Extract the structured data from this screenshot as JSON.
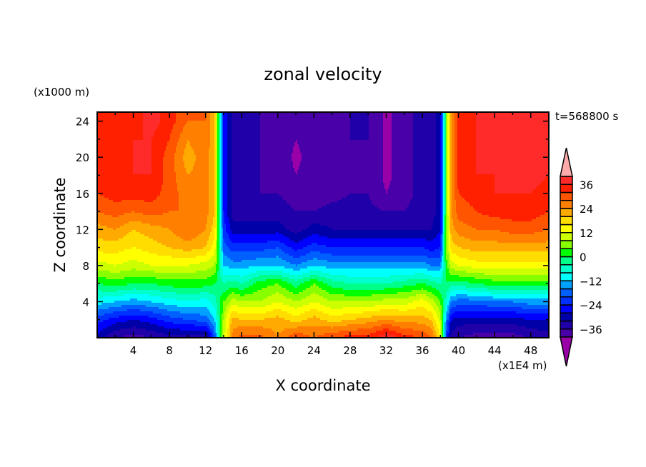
{
  "chart_data": {
    "type": "heatmap",
    "title": "zonal velocity",
    "xlabel": "X coordinate",
    "ylabel": "Z coordinate",
    "x_unit": "(x1E4 m)",
    "y_unit": "(x1000 m)",
    "annotation": "t=568800 s",
    "xlim": [
      0,
      50
    ],
    "ylim": [
      0,
      25
    ],
    "x_ticks": [
      4,
      8,
      12,
      16,
      20,
      24,
      28,
      32,
      36,
      40,
      44,
      48
    ],
    "y_ticks": [
      4,
      8,
      12,
      16,
      20,
      24
    ],
    "colorbar": {
      "levels": [
        -40,
        -36,
        -32,
        -28,
        -24,
        -20,
        -16,
        -12,
        -8,
        -4,
        0,
        4,
        8,
        12,
        16,
        20,
        24,
        28,
        32,
        36,
        40
      ],
      "labels": [
        "36",
        "24",
        "12",
        "0",
        "-12",
        "-24",
        "-36"
      ],
      "label_values": [
        36,
        24,
        12,
        0,
        -12,
        -24,
        -36
      ],
      "colors": [
        "#9a00a8",
        "#4a00a8",
        "#2000a8",
        "#0000a8",
        "#0000ff",
        "#0030ff",
        "#0060ff",
        "#00a0ff",
        "#00ffff",
        "#00ffcc",
        "#00ff88",
        "#00ff00",
        "#88ff00",
        "#ccff00",
        "#ffff00",
        "#ffdd00",
        "#ffaa00",
        "#ff8000",
        "#ff5500",
        "#ff2000",
        "#ff2a2a",
        "#ffaaaa"
      ]
    },
    "grid_x": [
      0,
      2,
      4,
      6,
      8,
      10,
      12,
      13,
      14,
      15,
      16,
      18,
      20,
      22,
      24,
      26,
      28,
      30,
      32,
      34,
      36,
      37,
      38,
      38.6,
      39.2,
      40,
      42,
      44,
      46,
      48,
      50
    ],
    "grid_z": [
      0,
      2,
      4,
      6,
      8,
      10,
      12,
      14,
      16,
      18,
      20,
      22,
      24
    ],
    "values": [
      [
        -30,
        -36,
        -38,
        -36,
        -34,
        -34,
        -36,
        -20,
        10,
        26,
        30,
        30,
        24,
        32,
        28,
        32,
        34,
        34,
        40,
        34,
        32,
        28,
        16,
        -20,
        -34,
        -36,
        -38,
        -38,
        -38,
        -36,
        -34
      ],
      [
        -22,
        -26,
        -28,
        -26,
        -22,
        -20,
        -18,
        -12,
        8,
        22,
        20,
        20,
        22,
        18,
        22,
        18,
        20,
        22,
        24,
        22,
        22,
        20,
        10,
        -14,
        -28,
        -30,
        -30,
        -30,
        -30,
        -28,
        -28
      ],
      [
        -10,
        -12,
        -14,
        -12,
        -10,
        -8,
        -10,
        -6,
        4,
        10,
        8,
        8,
        12,
        8,
        12,
        8,
        8,
        8,
        10,
        10,
        14,
        10,
        4,
        -6,
        -16,
        -18,
        -18,
        -16,
        -16,
        -14,
        -14
      ],
      [
        0,
        2,
        0,
        0,
        2,
        2,
        2,
        0,
        -4,
        -2,
        -4,
        2,
        4,
        -2,
        4,
        -2,
        -4,
        -4,
        -4,
        -2,
        0,
        -2,
        -4,
        0,
        -2,
        -2,
        0,
        2,
        2,
        2,
        2
      ],
      [
        10,
        12,
        10,
        12,
        12,
        12,
        10,
        8,
        -12,
        -14,
        -14,
        -12,
        -12,
        -16,
        -12,
        -14,
        -14,
        -14,
        -14,
        -14,
        -14,
        -16,
        -16,
        2,
        10,
        12,
        14,
        14,
        14,
        14,
        14
      ],
      [
        18,
        18,
        16,
        18,
        20,
        22,
        20,
        14,
        -18,
        -22,
        -22,
        -22,
        -20,
        -26,
        -22,
        -24,
        -24,
        -24,
        -24,
        -24,
        -24,
        -26,
        -24,
        4,
        18,
        20,
        22,
        22,
        22,
        22,
        22
      ],
      [
        22,
        24,
        20,
        22,
        24,
        28,
        24,
        18,
        -22,
        -30,
        -30,
        -30,
        -30,
        -34,
        -30,
        -32,
        -32,
        -32,
        -32,
        -32,
        -32,
        -32,
        -28,
        4,
        22,
        26,
        28,
        28,
        30,
        30,
        28
      ],
      [
        28,
        30,
        28,
        30,
        28,
        28,
        26,
        20,
        -24,
        -34,
        -34,
        -34,
        -34,
        -36,
        -36,
        -35,
        -35,
        -35,
        -36,
        -36,
        -34,
        -34,
        -30,
        4,
        24,
        30,
        32,
        34,
        34,
        34,
        32
      ],
      [
        32,
        34,
        34,
        34,
        30,
        26,
        26,
        20,
        -24,
        -34,
        -34,
        -36,
        -36,
        -38,
        -38,
        -37,
        -36,
        -36,
        -40,
        -38,
        -34,
        -34,
        -30,
        4,
        24,
        32,
        34,
        36,
        36,
        36,
        34
      ],
      [
        34,
        34,
        36,
        36,
        30,
        24,
        26,
        20,
        -24,
        -34,
        -34,
        -36,
        -37,
        -40,
        -38,
        -38,
        -37,
        -36,
        -41,
        -38,
        -34,
        -34,
        -30,
        4,
        24,
        34,
        36,
        36,
        36,
        38,
        36
      ],
      [
        34,
        34,
        36,
        36,
        30,
        22,
        26,
        20,
        -24,
        -34,
        -34,
        -36,
        -37,
        -41,
        -38,
        -38,
        -37,
        -36,
        -41,
        -38,
        -34,
        -34,
        -30,
        4,
        24,
        34,
        36,
        36,
        36,
        40,
        36
      ],
      [
        34,
        32,
        36,
        36,
        32,
        24,
        28,
        20,
        -24,
        -34,
        -34,
        -36,
        -37,
        -40,
        -38,
        -37,
        -36,
        -36,
        -41,
        -38,
        -34,
        -34,
        -30,
        4,
        24,
        34,
        36,
        36,
        36,
        40,
        36
      ],
      [
        34,
        32,
        34,
        38,
        34,
        28,
        28,
        20,
        -24,
        -34,
        -34,
        -36,
        -38,
        -38,
        -37,
        -37,
        -36,
        -36,
        -41,
        -38,
        -34,
        -34,
        -30,
        4,
        24,
        34,
        36,
        36,
        36,
        38,
        36
      ]
    ]
  }
}
